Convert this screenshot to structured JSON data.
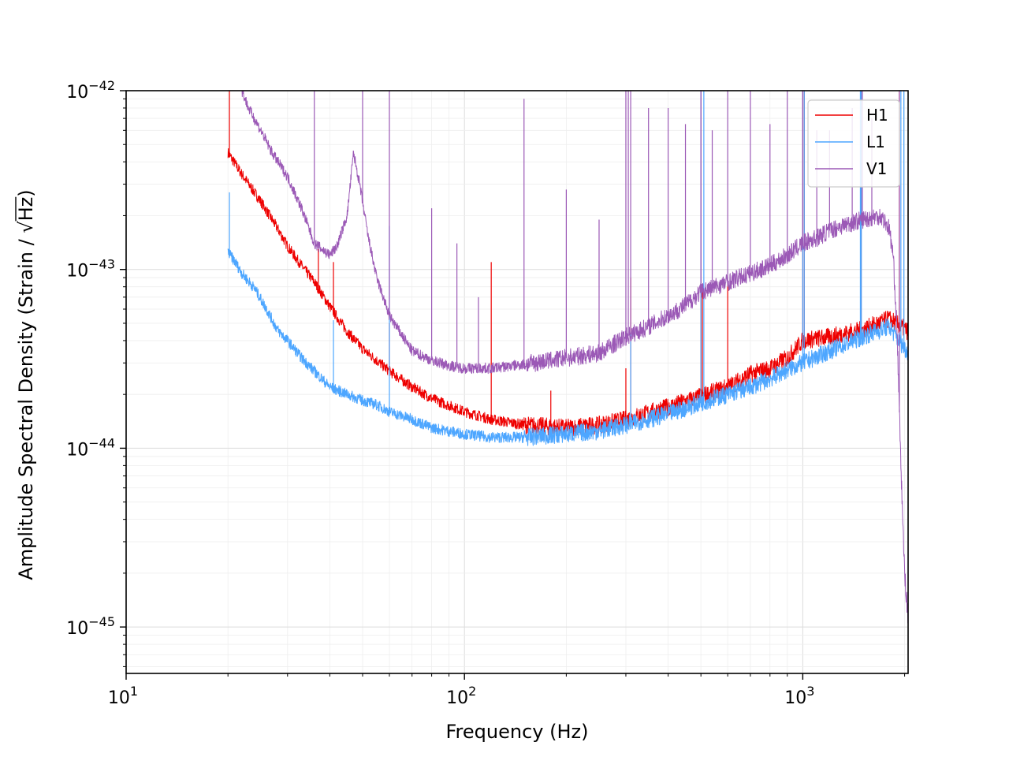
{
  "chart_data": {
    "type": "line",
    "title": "",
    "xlabel": "Frequency (Hz)",
    "ylabel_prefix": "Amplitude Spectral Density (Strain / ",
    "ylabel_radical": "√",
    "ylabel_radicand": "Hz",
    "ylabel_suffix": ")",
    "xscale": "log",
    "yscale": "log",
    "xlim": [
      10,
      2048
    ],
    "ylim": [
      5.5e-46,
      1e-42
    ],
    "grid": true,
    "legend_placement": "top-right",
    "x_major_ticks": [
      {
        "value": 10,
        "base": "10",
        "exp": "1"
      },
      {
        "value": 100,
        "base": "10",
        "exp": "2"
      },
      {
        "value": 1000,
        "base": "10",
        "exp": "3"
      }
    ],
    "y_major_ticks": [
      {
        "value": 1e-42,
        "base": "10",
        "exp": "−42"
      },
      {
        "value": 1e-43,
        "base": "10",
        "exp": "−43"
      },
      {
        "value": 1e-44,
        "base": "10",
        "exp": "−44"
      },
      {
        "value": 1e-45,
        "base": "10",
        "exp": "−45"
      }
    ],
    "series": [
      {
        "name": "H1",
        "color": "#ee0000",
        "x": [
          20,
          22,
          25,
          28,
          30,
          33,
          36,
          40,
          45,
          50,
          60,
          70,
          80,
          100,
          120,
          150,
          200,
          250,
          300,
          400,
          500,
          600,
          700,
          800,
          900,
          1000,
          1200,
          1500,
          1800,
          2048
        ],
        "y": [
          4.5e-43,
          3.4e-43,
          2.4e-43,
          1.7e-43,
          1.35e-43,
          1.05e-43,
          8.5e-44,
          6.2e-44,
          4.5e-44,
          3.6e-44,
          2.7e-44,
          2.2e-44,
          1.9e-44,
          1.6e-44,
          1.45e-44,
          1.35e-44,
          1.3e-44,
          1.35e-44,
          1.45e-44,
          1.7e-44,
          1.95e-44,
          2.2e-44,
          2.6e-44,
          2.8e-44,
          3.2e-44,
          4e-44,
          4.2e-44,
          4.6e-44,
          5.3e-44,
          4.5e-44
        ],
        "spikes": [
          {
            "x": 20.2,
            "y": 1e-42
          },
          {
            "x": 37,
            "y": 1.3e-43
          },
          {
            "x": 41,
            "y": 1.1e-43
          },
          {
            "x": 60,
            "y": 5e-44
          },
          {
            "x": 120,
            "y": 1.1e-43
          },
          {
            "x": 180,
            "y": 2.1e-44
          },
          {
            "x": 300,
            "y": 2.8e-44
          },
          {
            "x": 310,
            "y": 9e-44
          },
          {
            "x": 500,
            "y": 9.8e-43
          },
          {
            "x": 505,
            "y": 8e-44
          },
          {
            "x": 600,
            "y": 8.5e-44
          },
          {
            "x": 1000,
            "y": 1e-42
          },
          {
            "x": 1010,
            "y": 1e-42
          },
          {
            "x": 1485,
            "y": 1e-42
          },
          {
            "x": 1930,
            "y": 1e-42
          }
        ]
      },
      {
        "name": "L1",
        "color": "#4da6ff",
        "x": [
          20,
          21,
          22,
          24,
          26,
          28,
          30,
          33,
          36,
          40,
          45,
          50,
          55,
          60,
          70,
          80,
          100,
          120,
          150,
          200,
          250,
          300,
          400,
          500,
          600,
          700,
          800,
          900,
          1000,
          1200,
          1500,
          1800,
          2048
        ],
        "y": [
          1.25e-43,
          1.1e-43,
          9.5e-44,
          7.8e-44,
          6e-44,
          4.6e-44,
          4e-44,
          3.2e-44,
          2.7e-44,
          2.2e-44,
          2e-44,
          1.85e-44,
          1.75e-44,
          1.6e-44,
          1.45e-44,
          1.3e-44,
          1.2e-44,
          1.15e-44,
          1.15e-44,
          1.2e-44,
          1.25e-44,
          1.35e-44,
          1.55e-44,
          1.8e-44,
          2e-44,
          2.2e-44,
          2.45e-44,
          2.75e-44,
          3e-44,
          3.5e-44,
          4.2e-44,
          4.8e-44,
          3.4e-44
        ],
        "spikes": [
          {
            "x": 20.2,
            "y": 2.7e-43
          },
          {
            "x": 41,
            "y": 5.2e-44
          },
          {
            "x": 60,
            "y": 1.75e-43
          },
          {
            "x": 310,
            "y": 4.5e-44
          },
          {
            "x": 500,
            "y": 1e-42
          },
          {
            "x": 510,
            "y": 1e-42
          },
          {
            "x": 1000,
            "y": 1e-42
          },
          {
            "x": 1010,
            "y": 1e-42
          },
          {
            "x": 1480,
            "y": 1e-42
          },
          {
            "x": 1490,
            "y": 1e-42
          },
          {
            "x": 1950,
            "y": 1e-42
          },
          {
            "x": 1990,
            "y": 1e-42
          }
        ]
      },
      {
        "name": "V1",
        "color": "#9b59b6",
        "x": [
          22,
          23,
          25,
          27,
          30,
          33,
          36,
          40,
          42,
          45,
          47,
          49,
          52,
          55,
          60,
          70,
          80,
          90,
          100,
          120,
          140,
          160,
          200,
          250,
          300,
          350,
          400,
          450,
          500,
          600,
          700,
          800,
          900,
          1000,
          1100,
          1200,
          1300,
          1500,
          1700,
          1800,
          1850,
          1900,
          1950,
          2000,
          2048
        ],
        "y": [
          1e-42,
          8e-43,
          6e-43,
          4.5e-43,
          3.3e-43,
          2.2e-43,
          1.4e-43,
          1.2e-43,
          1.35e-43,
          2e-43,
          4.5e-43,
          3e-43,
          1.5e-43,
          9e-44,
          5.5e-44,
          3.5e-44,
          3.1e-44,
          2.9e-44,
          2.8e-44,
          2.8e-44,
          2.9e-44,
          3e-44,
          3.2e-44,
          3.4e-44,
          4.2e-44,
          4.8e-44,
          5.5e-44,
          6.3e-44,
          7.5e-44,
          8.5e-44,
          9.5e-44,
          1.05e-43,
          1.2e-43,
          1.4e-43,
          1.5e-43,
          1.65e-43,
          1.75e-43,
          1.9e-43,
          2e-43,
          1.7e-43,
          1.2e-43,
          4.5e-44,
          8e-45,
          2e-45,
          1.1e-45
        ],
        "spikes": [
          {
            "x": 36,
            "y": 1e-42
          },
          {
            "x": 50,
            "y": 1e-42
          },
          {
            "x": 60,
            "y": 1e-42
          },
          {
            "x": 80,
            "y": 2.2e-43
          },
          {
            "x": 95,
            "y": 1.4e-43
          },
          {
            "x": 110,
            "y": 7e-44
          },
          {
            "x": 150,
            "y": 9e-43
          },
          {
            "x": 200,
            "y": 2.8e-43
          },
          {
            "x": 250,
            "y": 1.9e-43
          },
          {
            "x": 300,
            "y": 1e-42
          },
          {
            "x": 305,
            "y": 1e-42
          },
          {
            "x": 310,
            "y": 1e-42
          },
          {
            "x": 350,
            "y": 8e-43
          },
          {
            "x": 400,
            "y": 8e-43
          },
          {
            "x": 450,
            "y": 6.5e-43
          },
          {
            "x": 500,
            "y": 1e-42
          },
          {
            "x": 540,
            "y": 6e-43
          },
          {
            "x": 600,
            "y": 1e-42
          },
          {
            "x": 700,
            "y": 1e-42
          },
          {
            "x": 800,
            "y": 6.5e-43
          },
          {
            "x": 900,
            "y": 1e-42
          },
          {
            "x": 1000,
            "y": 1e-42
          },
          {
            "x": 1100,
            "y": 6e-43
          },
          {
            "x": 1200,
            "y": 6e-43
          },
          {
            "x": 1400,
            "y": 8e-43
          },
          {
            "x": 1500,
            "y": 1e-42
          },
          {
            "x": 1600,
            "y": 7e-43
          },
          {
            "x": 1930,
            "y": 1e-42
          }
        ]
      }
    ]
  }
}
